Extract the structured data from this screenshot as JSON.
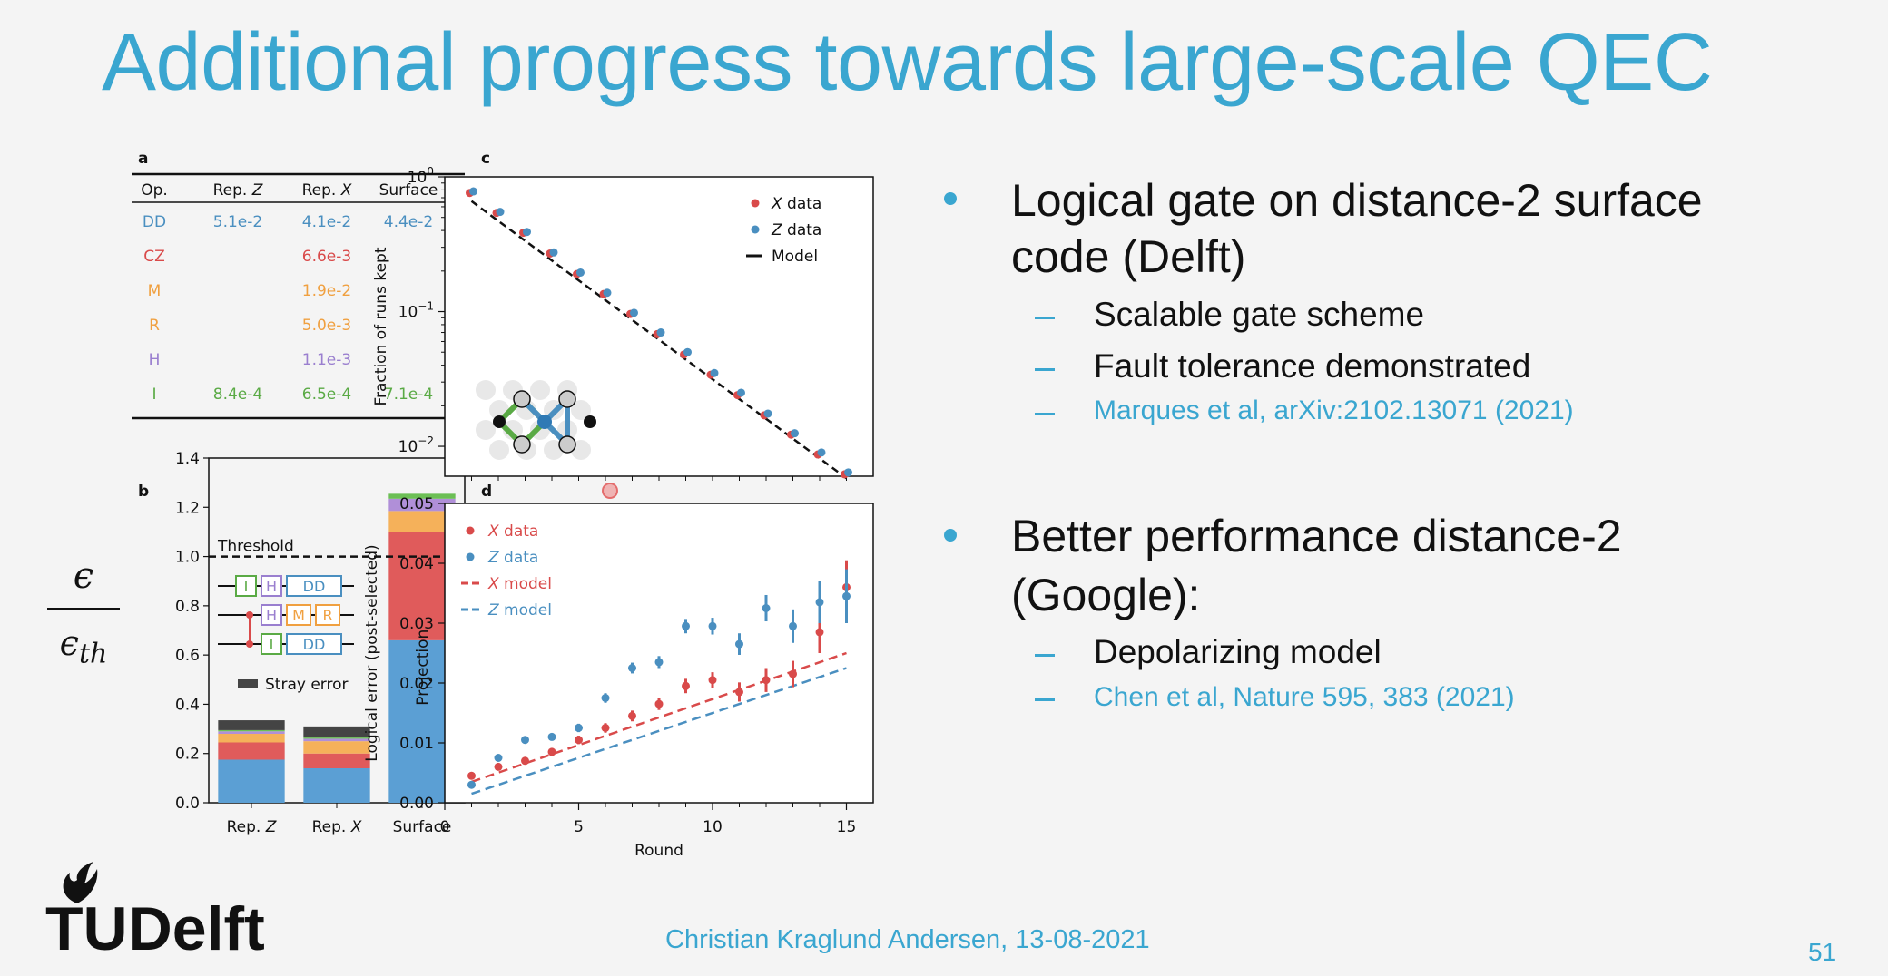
{
  "slide": {
    "title": "Additional progress towards large-scale QEC",
    "footer": "Christian Kraglund Andersen, 13-08-2021",
    "page_number": "51",
    "logo": "TUDelft",
    "fraction": {
      "numerator": "ϵ",
      "denominator": "ϵ",
      "denominator_sub": "th"
    }
  },
  "bullets": [
    {
      "text_line1": "Logical gate on distance-2 surface",
      "text_line2": "code (Delft)",
      "subs": [
        "Scalable gate scheme",
        "Fault tolerance demonstrated"
      ],
      "reference": "Marques et al, arXiv:2102.13071 (2021)"
    },
    {
      "text_line1": "Better performance distance-2",
      "text_line2": "(Google):",
      "subs": [
        "Depolarizing model"
      ],
      "reference": "Chen et al, Nature 595, 383 (2021)"
    }
  ],
  "panels": {
    "a": "a",
    "b": "b",
    "c": "c",
    "d": "d"
  },
  "table": {
    "headers": [
      "Op.",
      "Rep. Z",
      "Rep. X",
      "Surface"
    ],
    "rows": [
      {
        "op": "DD",
        "color": "#4a8fc0",
        "rep_z": "5.1e-2",
        "rep_x": "4.1e-2",
        "surface": "4.4e-2"
      },
      {
        "op": "CZ",
        "color": "#d94a4a",
        "rep_z": "",
        "rep_x": "6.6e-3",
        "surface": ""
      },
      {
        "op": "M",
        "color": "#f0a040",
        "rep_z": "",
        "rep_x": "1.9e-2",
        "surface": ""
      },
      {
        "op": "R",
        "color": "#f0a040",
        "rep_z": "",
        "rep_x": "5.0e-3",
        "surface": ""
      },
      {
        "op": "H",
        "color": "#9a7fcf",
        "rep_z": "",
        "rep_x": "1.1e-3",
        "surface": ""
      },
      {
        "op": "I",
        "color": "#5aaa45",
        "rep_z": "8.4e-4",
        "rep_x": "6.5e-4",
        "surface": "7.1e-4"
      }
    ]
  },
  "chart_data": [
    {
      "panel": "b",
      "type": "bar",
      "stacked": true,
      "categories": [
        "Rep. Z",
        "Rep. X",
        "Surface"
      ],
      "ylim": [
        0.0,
        1.4
      ],
      "yticks": [
        "0.0",
        "0.2",
        "0.4",
        "0.6",
        "0.8",
        "1.0",
        "1.2",
        "1.4"
      ],
      "threshold": {
        "value": 1.0,
        "label": "Threshold"
      },
      "bar_label": "Projection",
      "stray_label": "Stray error",
      "gate_labels": [
        "I",
        "H",
        "DD",
        "H",
        "M",
        "R",
        "I",
        "DD"
      ],
      "segments": [
        {
          "color": "#5b9fd4",
          "values": [
            0.175,
            0.14,
            0.66
          ]
        },
        {
          "color": "#e05b5b",
          "values": [
            0.07,
            0.06,
            0.44
          ]
        },
        {
          "color": "#f5b15a",
          "values": [
            0.035,
            0.05,
            0.085
          ]
        },
        {
          "color": "#b08fd8",
          "values": [
            0.01,
            0.01,
            0.05
          ]
        },
        {
          "color": "#6cbf55",
          "values": [
            0.005,
            0.005,
            0.02
          ]
        },
        {
          "color": "#444444",
          "values": [
            0.04,
            0.045,
            0.0
          ]
        }
      ]
    },
    {
      "panel": "c",
      "type": "scatter",
      "yscale": "log",
      "ylabel": "Fraction of runs kept",
      "ylim": [
        0.006,
        1.0
      ],
      "ytick_labels": [
        "10",
        "10",
        "10"
      ],
      "ytick_exps": [
        "0",
        "−1",
        "−2"
      ],
      "legend": [
        "X data",
        "Z data",
        "Model"
      ],
      "series": [
        {
          "name": "X data",
          "color": "#d94a4a",
          "x": [
            1,
            2,
            3,
            4,
            5,
            6,
            7,
            8,
            9,
            10,
            11,
            12,
            13,
            14,
            15
          ],
          "y": [
            0.76,
            0.54,
            0.385,
            0.27,
            0.19,
            0.135,
            0.096,
            0.068,
            0.048,
            0.034,
            0.024,
            0.017,
            0.0122,
            0.0087,
            0.0062
          ]
        },
        {
          "name": "Z data",
          "color": "#4a8fc0",
          "x": [
            1,
            2,
            3,
            4,
            5,
            6,
            7,
            8,
            9,
            10,
            11,
            12,
            13,
            14,
            15
          ],
          "y": [
            0.78,
            0.55,
            0.39,
            0.275,
            0.195,
            0.138,
            0.098,
            0.07,
            0.05,
            0.035,
            0.025,
            0.0175,
            0.0125,
            0.009,
            0.0064
          ]
        },
        {
          "name": "Model",
          "color": "#111111",
          "x": [
            1,
            15
          ],
          "y": [
            0.66,
            0.0058
          ]
        }
      ]
    },
    {
      "panel": "d",
      "type": "scatter",
      "xlabel": "Round",
      "ylabel": "Logical error (post-selected)",
      "xlim": [
        0,
        16
      ],
      "ylim": [
        0.0,
        0.05
      ],
      "xticks": [
        "0",
        "5",
        "10",
        "15"
      ],
      "yticks": [
        "0.00",
        "0.01",
        "0.02",
        "0.03",
        "0.04",
        "0.05"
      ],
      "legend": [
        "X data",
        "Z data",
        "X model",
        "Z model"
      ],
      "series": [
        {
          "name": "X data",
          "color": "#d94a4a",
          "x": [
            1,
            2,
            3,
            4,
            5,
            6,
            7,
            8,
            9,
            10,
            11,
            12,
            13,
            14,
            15
          ],
          "y": [
            0.0045,
            0.006,
            0.007,
            0.0085,
            0.0105,
            0.0125,
            0.0145,
            0.0165,
            0.0195,
            0.0205,
            0.0185,
            0.0205,
            0.0215,
            0.0285,
            0.036
          ],
          "err": [
            0.0005,
            0.0005,
            0.0006,
            0.0006,
            0.0007,
            0.0008,
            0.0009,
            0.001,
            0.0012,
            0.0013,
            0.0016,
            0.002,
            0.0022,
            0.0035,
            0.0045
          ]
        },
        {
          "name": "Z data",
          "color": "#4a8fc0",
          "x": [
            1,
            2,
            3,
            4,
            5,
            6,
            7,
            8,
            9,
            10,
            11,
            12,
            13,
            14,
            15
          ],
          "y": [
            0.003,
            0.0075,
            0.0105,
            0.011,
            0.0125,
            0.0175,
            0.0225,
            0.0235,
            0.0295,
            0.0295,
            0.0265,
            0.0325,
            0.0295,
            0.0335,
            0.0345
          ],
          "err": [
            0.0005,
            0.0006,
            0.0006,
            0.0006,
            0.0007,
            0.0008,
            0.0009,
            0.001,
            0.0012,
            0.0014,
            0.0018,
            0.0022,
            0.0028,
            0.0035,
            0.0045
          ]
        },
        {
          "name": "X model",
          "color": "#d94a4a",
          "x": [
            1,
            15
          ],
          "y": [
            0.0035,
            0.025
          ]
        },
        {
          "name": "Z model",
          "color": "#4a8fc0",
          "x": [
            1,
            15
          ],
          "y": [
            0.0015,
            0.0225
          ]
        }
      ]
    }
  ]
}
